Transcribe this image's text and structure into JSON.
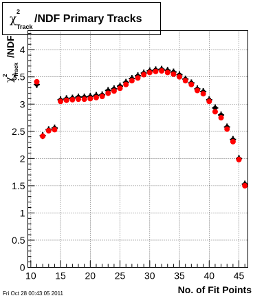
{
  "chart_data": {
    "type": "scatter",
    "title": "/NDF Primary Tracks",
    "title_chi_symbol": "χ",
    "title_superscript": "2",
    "title_subscript": "Track",
    "xlabel": "No. of Fit Points",
    "ylabel_symbol": "χ",
    "ylabel_superscript": "2",
    "ylabel_subscript": "Track",
    "ylabel_suffix": "/NDF",
    "xlim": [
      9.5,
      46.5
    ],
    "ylim": [
      0,
      4.35
    ],
    "x_ticks": [
      10,
      15,
      20,
      25,
      30,
      35,
      40,
      45
    ],
    "x_tick_labels": [
      "10",
      "15",
      "20",
      "25",
      "30",
      "35",
      "40",
      "45"
    ],
    "y_ticks": [
      0,
      0.5,
      1,
      1.5,
      2,
      2.5,
      3,
      3.5,
      4
    ],
    "y_tick_labels": [
      "0",
      "0.5",
      "1",
      "1.5",
      "2",
      "2.5",
      "3",
      "3.5",
      "4"
    ],
    "grid": true,
    "series": [
      {
        "color": "#000000",
        "marker": "cross",
        "x": [
          11,
          12,
          13,
          14,
          15,
          16,
          17,
          18,
          19,
          20,
          21,
          22,
          23,
          24,
          25,
          26,
          27,
          28,
          29,
          30,
          31,
          32,
          33,
          34,
          35,
          36,
          37,
          38,
          39,
          40,
          41,
          42,
          43,
          44,
          45,
          46
        ],
        "y": [
          3.36,
          2.42,
          2.53,
          2.56,
          3.08,
          3.1,
          3.11,
          3.13,
          3.13,
          3.14,
          3.16,
          3.17,
          3.25,
          3.28,
          3.33,
          3.4,
          3.47,
          3.52,
          3.57,
          3.61,
          3.63,
          3.64,
          3.62,
          3.59,
          3.54,
          3.46,
          3.39,
          3.28,
          3.23,
          3.08,
          2.93,
          2.8,
          2.58,
          2.35,
          2.0,
          1.53
        ]
      },
      {
        "color": "#ff0000",
        "marker": "circle",
        "x": [
          11,
          12,
          13,
          14,
          15,
          16,
          17,
          18,
          19,
          20,
          21,
          22,
          23,
          24,
          25,
          26,
          27,
          28,
          29,
          30,
          31,
          32,
          33,
          34,
          35,
          36,
          37,
          38,
          39,
          40,
          41,
          42,
          43,
          44,
          45,
          46
        ],
        "y": [
          3.41,
          2.41,
          2.51,
          2.53,
          3.05,
          3.07,
          3.08,
          3.09,
          3.09,
          3.1,
          3.12,
          3.14,
          3.2,
          3.24,
          3.29,
          3.36,
          3.43,
          3.48,
          3.54,
          3.58,
          3.6,
          3.61,
          3.58,
          3.55,
          3.5,
          3.43,
          3.36,
          3.25,
          3.19,
          3.05,
          2.86,
          2.75,
          2.54,
          2.31,
          1.98,
          1.5
        ]
      }
    ]
  },
  "footer_text": "Fri Oct 28 00:43:05 2011"
}
